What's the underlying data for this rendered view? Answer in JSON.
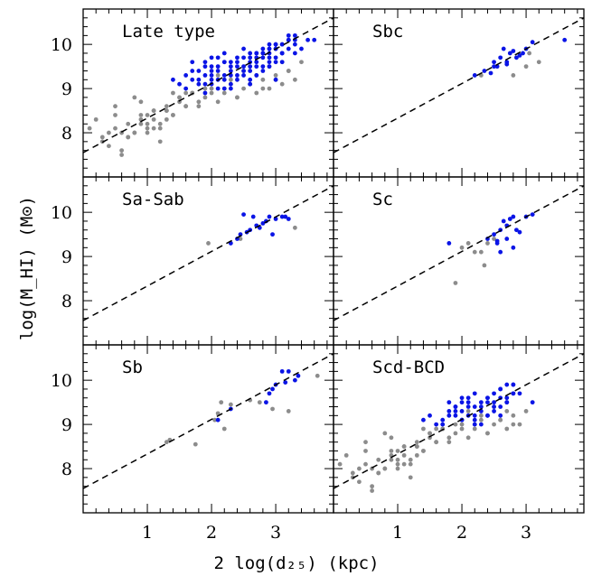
{
  "chart_data": {
    "type": "scatter",
    "xlabel": "2 log(d₂₅) (kpc)",
    "ylabel": "log(M_HI) (M⊙)",
    "xlim": [
      0.0,
      3.9
    ],
    "ylim": [
      7.0,
      10.8
    ],
    "xticks": [
      "1",
      "2",
      "3"
    ],
    "yticks": [
      "8",
      "9",
      "10"
    ],
    "fit_line": {
      "style": "dashed",
      "x": [
        0.0,
        3.9
      ],
      "y": [
        7.55,
        10.6
      ]
    },
    "colors": {
      "blue": "#0a14e6",
      "gray": "#8c8c8c"
    },
    "panels": [
      {
        "title": "Late type",
        "series": [
          {
            "color": "blue",
            "x": [
              2.0,
              2.1,
              2.2,
              2.3,
              2.4,
              2.5,
              2.6,
              2.7,
              2.8,
              2.9,
              3.0,
              3.1,
              3.2,
              3.3,
              1.6,
              1.7,
              1.8,
              1.9,
              2.0,
              2.1,
              2.2,
              2.3,
              2.4,
              2.5,
              2.6,
              2.7,
              2.8,
              2.9,
              3.0,
              3.1,
              3.2,
              1.5,
              1.6,
              1.8,
              1.9,
              2.0,
              2.1,
              2.2,
              2.3,
              2.5,
              2.6,
              2.7,
              2.8,
              2.9,
              3.0,
              3.1,
              3.5,
              3.6,
              1.7,
              1.9,
              2.0,
              2.2,
              2.4,
              2.6,
              2.7,
              2.8,
              2.9,
              3.0,
              3.1,
              3.2,
              3.3,
              1.4,
              1.7,
              1.8,
              2.0,
              2.1,
              2.3,
              2.4,
              2.6,
              2.8,
              2.9,
              3.1,
              3.3,
              3.4,
              1.9,
              2.1,
              2.3,
              2.5,
              2.7,
              2.9,
              3.0,
              3.2,
              2.2,
              2.4,
              2.6,
              2.8,
              3.0,
              3.1,
              3.3,
              2.0,
              2.2,
              2.5,
              2.7,
              2.9,
              3.2,
              1.9,
              2.3,
              2.6,
              3.0
            ],
            "y": [
              9.5,
              9.4,
              9.6,
              9.3,
              9.7,
              9.5,
              9.8,
              9.6,
              9.9,
              9.7,
              10.0,
              9.8,
              10.1,
              10.2,
              9.3,
              9.2,
              9.4,
              9.1,
              9.3,
              9.5,
              9.2,
              9.4,
              9.6,
              9.3,
              9.5,
              9.7,
              9.8,
              9.9,
              9.6,
              9.8,
              10.2,
              9.1,
              9.0,
              9.2,
              9.3,
              9.4,
              9.2,
              9.3,
              9.5,
              9.4,
              9.6,
              9.5,
              9.7,
              9.8,
              9.9,
              10.0,
              10.1,
              10.1,
              9.4,
              9.6,
              9.1,
              9.0,
              9.2,
              9.4,
              9.3,
              9.5,
              9.6,
              9.7,
              9.8,
              9.9,
              10.0,
              9.2,
              9.6,
              9.1,
              9.2,
              9.0,
              9.1,
              9.3,
              9.2,
              9.4,
              9.5,
              9.6,
              9.8,
              9.9,
              9.5,
              9.7,
              9.6,
              9.7,
              9.8,
              9.9,
              10.0,
              10.1,
              9.6,
              9.5,
              9.7,
              9.8,
              9.9,
              10.0,
              10.1,
              9.7,
              9.8,
              9.9,
              9.8,
              10.0,
              10.1,
              8.9,
              9.0,
              9.1,
              9.2
            ]
          },
          {
            "color": "gray",
            "x": [
              0.1,
              0.2,
              0.3,
              0.4,
              0.5,
              0.6,
              0.7,
              0.8,
              0.9,
              1.0,
              1.1,
              1.2,
              1.3,
              1.4,
              1.5,
              0.3,
              0.5,
              0.7,
              0.9,
              1.0,
              1.1,
              1.3,
              1.5,
              1.6,
              1.7,
              0.4,
              0.6,
              0.8,
              1.0,
              1.2,
              1.4,
              1.6,
              1.8,
              0.5,
              0.7,
              0.9,
              1.1,
              1.3,
              1.5,
              1.7,
              1.9,
              2.0,
              2.1,
              2.2,
              2.3,
              2.4,
              2.5,
              2.6,
              2.7,
              2.8,
              2.9,
              3.0,
              3.1,
              3.2,
              3.3,
              3.4,
              1.8,
              2.0,
              2.2,
              2.4,
              2.6,
              2.8,
              3.0,
              3.2,
              0.8,
              1.0,
              1.2,
              1.4,
              1.6,
              0.6,
              0.9,
              1.1,
              1.3,
              1.9,
              2.1,
              2.3,
              2.5,
              2.7,
              2.9,
              3.1
            ],
            "y": [
              8.1,
              8.3,
              7.9,
              8.0,
              8.4,
              7.6,
              8.2,
              8.0,
              8.3,
              8.1,
              8.5,
              8.2,
              8.6,
              8.4,
              8.7,
              7.8,
              8.1,
              7.9,
              8.4,
              8.0,
              8.3,
              8.5,
              8.8,
              8.6,
              8.9,
              7.7,
              7.5,
              8.0,
              8.2,
              8.1,
              8.4,
              8.9,
              8.7,
              8.6,
              7.9,
              8.2,
              8.5,
              8.3,
              8.8,
              8.9,
              8.8,
              9.0,
              8.7,
              8.9,
              9.1,
              8.8,
              9.0,
              9.1,
              8.9,
              9.2,
              9.0,
              9.3,
              9.1,
              9.4,
              9.2,
              9.6,
              8.6,
              8.9,
              9.0,
              8.8,
              9.1,
              9.0,
              9.2,
              9.4,
              8.8,
              8.4,
              7.8,
              8.9,
              8.6,
              8.0,
              8.7,
              8.1,
              8.5,
              9.0,
              9.3,
              9.2,
              9.4,
              9.3,
              9.5,
              9.6
            ]
          }
        ]
      },
      {
        "title": "Sbc",
        "series": [
          {
            "color": "blue",
            "x": [
              2.2,
              2.35,
              2.45,
              2.5,
              2.55,
              2.6,
              2.65,
              2.7,
              2.75,
              2.8,
              2.85,
              2.9,
              2.95,
              3.0,
              3.1,
              3.6,
              2.7,
              2.5
            ],
            "y": [
              9.3,
              9.4,
              9.35,
              9.6,
              9.5,
              9.7,
              9.9,
              9.6,
              9.8,
              9.85,
              9.7,
              9.75,
              9.8,
              9.9,
              10.05,
              10.1,
              9.55,
              9.5
            ]
          },
          {
            "color": "gray",
            "x": [
              2.3,
              2.8,
              3.0,
              3.2,
              3.05
            ],
            "y": [
              9.3,
              9.3,
              9.5,
              9.6,
              9.8
            ]
          }
        ]
      },
      {
        "title": "Sa-Sab",
        "series": [
          {
            "color": "blue",
            "x": [
              2.3,
              2.4,
              2.45,
              2.5,
              2.6,
              2.65,
              2.7,
              2.75,
              2.8,
              2.85,
              2.9,
              3.0,
              3.1,
              3.15,
              3.2,
              2.55,
              2.95
            ],
            "y": [
              9.3,
              9.4,
              9.5,
              9.95,
              9.6,
              9.9,
              9.7,
              9.65,
              9.75,
              9.8,
              9.9,
              9.85,
              9.9,
              9.9,
              9.85,
              9.55,
              9.5
            ]
          },
          {
            "color": "gray",
            "x": [
              1.95,
              2.45,
              3.3
            ],
            "y": [
              9.3,
              9.4,
              9.65
            ]
          }
        ]
      },
      {
        "title": "Sc",
        "series": [
          {
            "color": "blue",
            "x": [
              1.8,
              2.4,
              2.5,
              2.55,
              2.6,
              2.65,
              2.7,
              2.75,
              2.8,
              2.85,
              2.9,
              3.0,
              3.1,
              2.6,
              2.7,
              2.55,
              2.8
            ],
            "y": [
              9.3,
              9.4,
              9.5,
              9.35,
              9.6,
              9.8,
              9.7,
              9.85,
              9.9,
              9.6,
              9.55,
              9.9,
              9.95,
              9.1,
              9.4,
              9.3,
              9.2
            ]
          },
          {
            "color": "gray",
            "x": [
              1.9,
              2.0,
              2.1,
              2.2,
              2.3,
              2.35,
              2.4,
              2.5
            ],
            "y": [
              8.4,
              9.2,
              9.3,
              9.1,
              9.1,
              8.8,
              9.3,
              9.4
            ]
          }
        ]
      },
      {
        "title": "Sb",
        "series": [
          {
            "color": "blue",
            "x": [
              2.1,
              2.3,
              2.85,
              2.95,
              3.0,
              3.1,
              3.15,
              3.2,
              3.3,
              3.35,
              2.9
            ],
            "y": [
              9.1,
              9.35,
              9.5,
              9.8,
              9.9,
              10.2,
              9.95,
              10.2,
              10.0,
              10.1,
              9.7
            ]
          },
          {
            "color": "gray",
            "x": [
              1.3,
              1.35,
              1.75,
              2.05,
              2.1,
              2.15,
              2.2,
              2.3,
              2.6,
              2.75,
              2.95,
              3.2,
              3.65
            ],
            "y": [
              8.6,
              8.65,
              8.55,
              9.1,
              9.25,
              9.5,
              8.9,
              9.45,
              9.55,
              9.5,
              9.35,
              9.3,
              10.1
            ]
          }
        ]
      },
      {
        "title": "Scd-BCD",
        "series": [
          {
            "color": "blue",
            "x": [
              1.8,
              1.9,
              2.0,
              2.1,
              2.2,
              2.3,
              2.4,
              2.5,
              2.6,
              2.7,
              2.8,
              1.6,
              1.7,
              1.8,
              1.9,
              2.0,
              2.1,
              2.2,
              2.3,
              2.4,
              2.5,
              2.6,
              2.7,
              2.8,
              1.5,
              1.7,
              1.9,
              2.0,
              2.1,
              2.2,
              2.3,
              2.4,
              2.5,
              2.6,
              2.7,
              2.8,
              1.8,
              2.0,
              2.2,
              2.4,
              2.6,
              2.8,
              1.9,
              2.1,
              2.3,
              2.5,
              2.7,
              2.9,
              2.0,
              2.2,
              2.4,
              2.6,
              3.1,
              1.4
            ],
            "y": [
              9.2,
              9.3,
              9.1,
              9.4,
              9.2,
              9.3,
              9.5,
              9.4,
              9.6,
              9.5,
              9.7,
              9.0,
              9.1,
              9.3,
              9.4,
              9.5,
              9.6,
              9.4,
              9.5,
              9.6,
              9.7,
              9.8,
              9.9,
              9.7,
              9.2,
              9.0,
              9.2,
              9.3,
              9.2,
              9.1,
              9.0,
              9.2,
              9.3,
              9.4,
              9.5,
              9.9,
              9.5,
              9.6,
              9.7,
              9.6,
              9.8,
              9.9,
              9.4,
              9.5,
              9.4,
              9.5,
              9.6,
              9.7,
              9.1,
              9.0,
              9.2,
              9.2,
              9.5,
              9.1
            ]
          },
          {
            "color": "gray",
            "x": [
              0.1,
              0.2,
              0.3,
              0.4,
              0.5,
              0.6,
              0.7,
              0.8,
              0.9,
              1.0,
              1.1,
              1.2,
              1.3,
              1.4,
              1.5,
              0.3,
              0.5,
              0.7,
              0.9,
              1.0,
              1.1,
              1.3,
              1.5,
              1.6,
              1.7,
              0.4,
              0.6,
              0.8,
              1.0,
              1.2,
              1.4,
              1.6,
              1.8,
              0.5,
              0.7,
              0.9,
              1.1,
              1.3,
              1.5,
              1.7,
              1.9,
              2.0,
              2.1,
              2.2,
              2.3,
              2.4,
              2.5,
              2.6,
              2.7,
              2.8,
              2.9,
              3.0,
              1.8,
              2.0,
              2.2,
              2.4,
              2.6,
              2.8,
              0.8,
              1.0,
              1.2,
              1.4,
              1.6,
              0.6,
              0.9,
              1.1,
              1.3,
              1.9,
              2.1,
              2.3,
              2.5,
              2.7
            ],
            "y": [
              8.1,
              8.3,
              7.9,
              8.0,
              8.4,
              7.6,
              8.2,
              8.0,
              8.3,
              8.1,
              8.5,
              8.2,
              8.6,
              8.4,
              8.7,
              7.8,
              8.1,
              7.9,
              8.4,
              8.0,
              8.3,
              8.5,
              8.8,
              8.6,
              8.9,
              7.7,
              7.5,
              8.0,
              8.2,
              8.1,
              8.4,
              8.9,
              8.7,
              8.6,
              7.9,
              8.2,
              8.5,
              8.3,
              8.8,
              8.9,
              8.8,
              9.0,
              8.7,
              8.9,
              9.1,
              8.8,
              9.0,
              9.1,
              8.9,
              9.2,
              9.0,
              9.3,
              8.6,
              8.9,
              9.0,
              8.8,
              9.1,
              9.0,
              8.8,
              8.4,
              7.8,
              8.9,
              8.6,
              8.0,
              8.7,
              8.1,
              8.5,
              9.0,
              9.3,
              9.2,
              9.4,
              9.3
            ]
          }
        ]
      }
    ]
  }
}
